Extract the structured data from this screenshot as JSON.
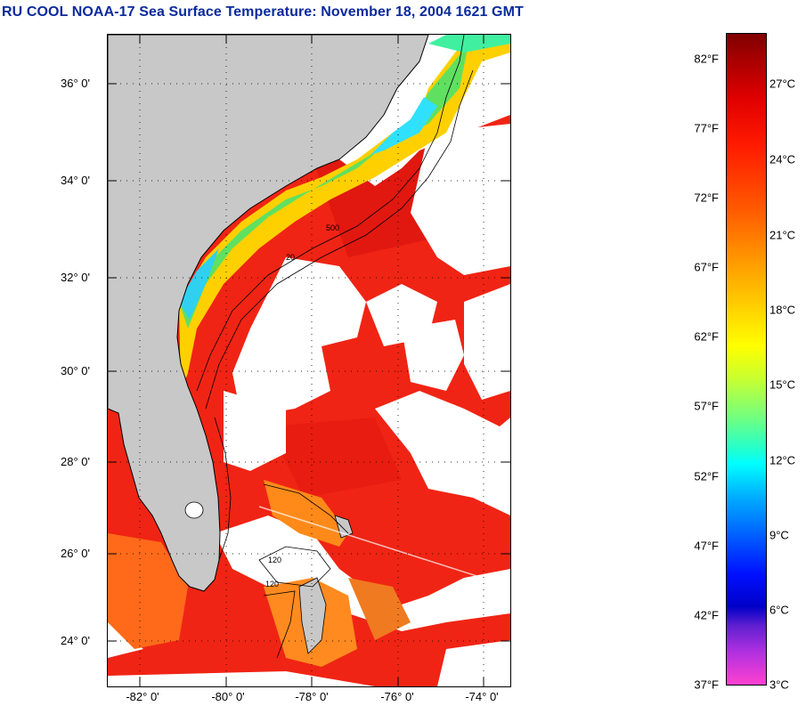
{
  "title": "RU COOL  NOAA-17  Sea Surface Temperature:  November 18, 2004 1621 GMT",
  "map": {
    "lat_labels": [
      "36° 0'",
      "34° 0'",
      "32° 0'",
      "30° 0'",
      "28° 0'",
      "26° 0'",
      "24° 0'"
    ],
    "lon_labels": [
      "-82° 0'",
      "-80° 0'",
      "-78° 0'",
      "-76° 0'",
      "-74° 0'"
    ],
    "contour_labels": [
      "120",
      "500",
      "20",
      "120"
    ],
    "colors": {
      "land": "#c8c8c8",
      "cloud": "#ffffff",
      "warm_ocean": "#f02010",
      "shelf_green": "#60e060"
    }
  },
  "colorbar": {
    "fahrenheit": [
      "82°F",
      "77°F",
      "72°F",
      "67°F",
      "62°F",
      "57°F",
      "52°F",
      "47°F",
      "42°F",
      "37°F"
    ],
    "celsius": [
      "27°C",
      "24°C",
      "21°C",
      "18°C",
      "15°C",
      "12°C",
      "9°C",
      "6°C",
      "3°C"
    ]
  }
}
